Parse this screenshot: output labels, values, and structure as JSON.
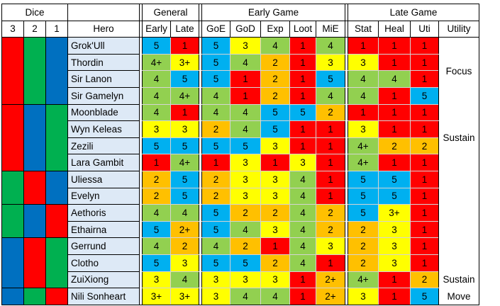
{
  "colors": {
    "1": "#ff0000",
    "2": "#ffc000",
    "3": "#ffff00",
    "4": "#92d050",
    "5": "#00b0f0",
    "dice_red": "#ff0000",
    "dice_green": "#00b050",
    "dice_blue": "#0070c0",
    "dice_gray": "#bfbfbf",
    "hero_bg": "#dde9f6"
  },
  "headers": {
    "dice": "Dice",
    "general": "General",
    "early_game": "Early Game",
    "late_game": "Late Game",
    "dice_cols": [
      "3",
      "2",
      "1"
    ],
    "hero": "Hero",
    "general_cols": [
      "Early",
      "Late"
    ],
    "early_cols": [
      "GoE",
      "GoD",
      "Exp",
      "Loot",
      "MiE"
    ],
    "late_cols": [
      "Stat",
      "Heal",
      "Uti"
    ],
    "utility": "Utility"
  },
  "dice": [
    {
      "rows": 4,
      "colors": [
        "red",
        "green",
        "blue"
      ]
    },
    {
      "rows": 4,
      "colors": [
        "red",
        "blue",
        "green"
      ]
    },
    {
      "rows": 2,
      "colors": [
        "green",
        "red",
        "blue"
      ]
    },
    {
      "rows": 2,
      "colors": [
        "green",
        "blue",
        "red"
      ]
    },
    {
      "rows": 3,
      "colors": [
        "blue",
        "red",
        "green"
      ]
    },
    {
      "rows": 3,
      "colors": [
        "blue",
        "green",
        "red"
      ]
    },
    {
      "rows": 2,
      "colors": [
        "gray",
        "gray",
        "gray"
      ]
    }
  ],
  "utility_groups": [
    {
      "rows": 4,
      "text": "Focus"
    },
    {
      "rows": 4,
      "text": "Sustain"
    },
    {
      "rows": 6,
      "text": ""
    },
    {
      "rows": 1,
      "text": "Sustain"
    },
    {
      "rows": 1,
      "text": "Move"
    }
  ],
  "heroes": [
    {
      "name": "Grok'Ull",
      "general": [
        "5",
        "1"
      ],
      "early": [
        "5",
        "3",
        "4",
        "1",
        "4"
      ],
      "late": [
        "1",
        "1",
        "1"
      ]
    },
    {
      "name": "Thordin",
      "general": [
        "4+",
        "3+"
      ],
      "early": [
        "5",
        "4",
        "2",
        "1",
        "3"
      ],
      "late": [
        "3",
        "1",
        "1"
      ]
    },
    {
      "name": "Sir Lanon",
      "general": [
        "4",
        "5"
      ],
      "early": [
        "5",
        "1",
        "2",
        "1",
        "5"
      ],
      "late": [
        "4",
        "4",
        "1"
      ]
    },
    {
      "name": "Sir Gamelyn",
      "general": [
        "4",
        "4+"
      ],
      "early": [
        "4",
        "1",
        "2",
        "1",
        "4"
      ],
      "late": [
        "4",
        "1",
        "5"
      ]
    },
    {
      "name": "Moonblade",
      "general": [
        "4",
        "1"
      ],
      "early": [
        "4",
        "4",
        "5",
        "5",
        "2"
      ],
      "late": [
        "1",
        "1",
        "1"
      ]
    },
    {
      "name": "Wyn Keleas",
      "general": [
        "3",
        "3"
      ],
      "early": [
        "2",
        "4",
        "5",
        "1",
        "1"
      ],
      "late": [
        "3",
        "1",
        "1"
      ]
    },
    {
      "name": "Zezili",
      "general": [
        "5",
        "5"
      ],
      "early": [
        "5",
        "5",
        "3",
        "1",
        "1"
      ],
      "late": [
        "4+",
        "2",
        "2"
      ]
    },
    {
      "name": "Lara Gambit",
      "general": [
        "1",
        "4+"
      ],
      "early": [
        "1",
        "3",
        "1",
        "3",
        "1"
      ],
      "late": [
        "4+",
        "1",
        "1"
      ]
    },
    {
      "name": "Uliessa",
      "general": [
        "2",
        "5"
      ],
      "early": [
        "2",
        "3",
        "3",
        "4",
        "1"
      ],
      "late": [
        "5",
        "5",
        "1"
      ]
    },
    {
      "name": "Evelyn",
      "general": [
        "2",
        "5"
      ],
      "early": [
        "2",
        "3",
        "3",
        "4",
        "1"
      ],
      "late": [
        "5",
        "5",
        "1"
      ]
    },
    {
      "name": "Aethoris",
      "general": [
        "4",
        "4"
      ],
      "early": [
        "5",
        "2",
        "2",
        "4",
        "2"
      ],
      "late": [
        "5",
        "3+",
        "1"
      ]
    },
    {
      "name": "Ethairna",
      "general": [
        "5",
        "2+"
      ],
      "early": [
        "5",
        "4",
        "3",
        "4",
        "2"
      ],
      "late": [
        "2",
        "3",
        "1"
      ]
    },
    {
      "name": "Gerrund",
      "general": [
        "4",
        "2"
      ],
      "early": [
        "4",
        "2",
        "1",
        "4",
        "3"
      ],
      "late": [
        "2",
        "3",
        "1"
      ]
    },
    {
      "name": "Clotho",
      "general": [
        "5",
        "3"
      ],
      "early": [
        "5",
        "5",
        "2",
        "4",
        "1"
      ],
      "late": [
        "2",
        "3",
        "1"
      ]
    },
    {
      "name": "ZuiXiong",
      "general": [
        "3",
        "4"
      ],
      "early": [
        "3",
        "3",
        "3",
        "1",
        "2+"
      ],
      "late": [
        "4+",
        "1",
        "2"
      ]
    },
    {
      "name": "Nili Sonheart",
      "general": [
        "3+",
        "3+"
      ],
      "early": [
        "3",
        "4",
        "4",
        "1",
        "2+"
      ],
      "late": [
        "3",
        "1",
        "5"
      ]
    }
  ]
}
